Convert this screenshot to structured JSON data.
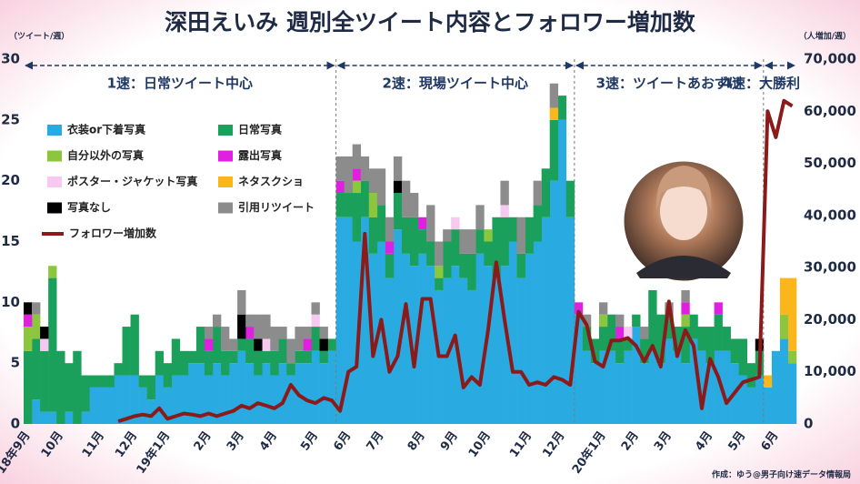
{
  "chart_data": {
    "type": "bar",
    "stacked": true,
    "title": "深田えいみ 週別全ツイート内容とフォロワー増加数",
    "ylabel": "（ツイート/週）",
    "y2label": "（人増加/週）",
    "source": "作成：ゆう@男子向け速データ情報局",
    "legend": "upper left",
    "grid": false,
    "ylim": [
      0,
      30
    ],
    "yticks": [
      0,
      5,
      10,
      15,
      20,
      25,
      30
    ],
    "y2lim": [
      0,
      70000
    ],
    "y2ticks": [
      0,
      {
        "value": 10000,
        "label": "10,000"
      },
      {
        "value": 20000,
        "label": "20,000"
      },
      {
        "value": 30000,
        "label": "30,000"
      },
      {
        "value": 40000,
        "label": "40,000"
      },
      {
        "value": 50000,
        "label": "50,000"
      },
      {
        "value": 60000,
        "label": "60,000"
      },
      {
        "value": 70000,
        "label": "70,000"
      }
    ],
    "phases": [
      {
        "label": "1速：日常ツイート中心",
        "start": 0,
        "end": 37
      },
      {
        "label": "2速：現場ツイート中心",
        "start": 38,
        "end": 66
      },
      {
        "label": "3速：ツイートあおずけ",
        "start": 67,
        "end": 89
      },
      {
        "label": "4速：大勝利",
        "start": 90,
        "end": 93
      }
    ],
    "categories": [
      "18年9月",
      null,
      null,
      null,
      "10月",
      null,
      null,
      null,
      null,
      "11月",
      null,
      null,
      null,
      "12月",
      null,
      null,
      null,
      "19年1月",
      null,
      null,
      null,
      null,
      "2月",
      null,
      null,
      null,
      "3月",
      null,
      null,
      null,
      "4月",
      null,
      null,
      null,
      null,
      "5月",
      null,
      null,
      null,
      "6月",
      null,
      null,
      null,
      "7月",
      null,
      null,
      null,
      null,
      "8月",
      null,
      null,
      null,
      "9月",
      null,
      null,
      null,
      "10月",
      null,
      null,
      null,
      null,
      "11月",
      null,
      null,
      null,
      "12月",
      null,
      null,
      null,
      null,
      "20年1月",
      null,
      null,
      null,
      "2月",
      null,
      null,
      null,
      "3月",
      null,
      null,
      null,
      null,
      "4月",
      null,
      null,
      null,
      "5月",
      null,
      null,
      null,
      "6月",
      null,
      null
    ],
    "series": [
      {
        "name": "衣装or下着写真",
        "color": "#29abe2",
        "values": [
          0,
          2,
          1,
          1,
          0,
          1,
          0,
          1,
          3,
          3,
          3,
          4,
          4,
          4,
          3,
          2,
          4,
          3,
          4,
          4,
          5,
          5,
          4,
          5,
          4,
          5,
          6,
          5,
          4,
          5,
          4,
          5,
          4,
          5,
          5,
          6,
          5,
          6,
          17,
          17,
          15,
          17,
          14,
          15,
          12,
          16,
          14,
          13,
          14,
          13,
          11,
          12,
          13,
          12,
          11,
          14,
          13,
          12,
          13,
          15,
          12,
          14,
          15,
          17,
          20,
          25,
          17,
          9,
          6,
          5,
          6,
          6,
          5,
          6,
          8,
          5,
          6,
          5,
          7,
          6,
          5,
          7,
          6,
          5,
          6,
          6,
          5,
          4,
          3,
          4,
          3,
          6,
          7,
          5
        ]
      },
      {
        "name": "日常写真",
        "color": "#1aa05a",
        "values": [
          6,
          5,
          5,
          11,
          6,
          4,
          6,
          3,
          1,
          1,
          1,
          1,
          4,
          5,
          1,
          2,
          2,
          2,
          3,
          2,
          1,
          3,
          2,
          3,
          2,
          1,
          1,
          2,
          2,
          1,
          2,
          2,
          1,
          1,
          1,
          2,
          1,
          1,
          2,
          2,
          4,
          3,
          3,
          3,
          2,
          3,
          3,
          4,
          2,
          2,
          1,
          3,
          3,
          2,
          3,
          2,
          2,
          5,
          4,
          2,
          2,
          3,
          3,
          4,
          5,
          2,
          3,
          0,
          2,
          2,
          2,
          3,
          2,
          1,
          1,
          2,
          5,
          4,
          2,
          2,
          3,
          2,
          2,
          3,
          3,
          2,
          2,
          3,
          2,
          2,
          0,
          0,
          0,
          0
        ]
      },
      {
        "name": "自分以外の写真",
        "color": "#8cc63f",
        "values": [
          2,
          2,
          0,
          1,
          0,
          0,
          0,
          0,
          0,
          0,
          0,
          0,
          0,
          0,
          0,
          0,
          0,
          0,
          0,
          0,
          0,
          0,
          0,
          0,
          0,
          0,
          0,
          0,
          0,
          0,
          0,
          0,
          0,
          0,
          0,
          0,
          0,
          0,
          0,
          0,
          1,
          0,
          2,
          0,
          0,
          0,
          0,
          0,
          0,
          0,
          1,
          0,
          0,
          0,
          0,
          0,
          1,
          0,
          0,
          0,
          0,
          0,
          0,
          0,
          0,
          0,
          0,
          0,
          0,
          0,
          1,
          0,
          0,
          0,
          0,
          0,
          0,
          0,
          0,
          0,
          1,
          0,
          0,
          0,
          0,
          0,
          0,
          0,
          0,
          0,
          0,
          0,
          2,
          1
        ]
      },
      {
        "name": "露出写真",
        "color": "#e020e0",
        "values": [
          1,
          0,
          0,
          0,
          0,
          0,
          0,
          0,
          0,
          0,
          0,
          0,
          0,
          0,
          0,
          0,
          0,
          0,
          0,
          0,
          0,
          0,
          1,
          0,
          0,
          0,
          0,
          1,
          0,
          0,
          0,
          0,
          0,
          0,
          1,
          0,
          0,
          0,
          1,
          0,
          1,
          0,
          0,
          0,
          1,
          0,
          0,
          0,
          1,
          0,
          0,
          0,
          0,
          0,
          0,
          0,
          0,
          0,
          0,
          0,
          0,
          0,
          0,
          0,
          0,
          0,
          0,
          1,
          0,
          0,
          0,
          0,
          1,
          0,
          0,
          0,
          0,
          0,
          0,
          0,
          1,
          0,
          0,
          0,
          1,
          0,
          0,
          0,
          0,
          0,
          0,
          0,
          0,
          0
        ]
      },
      {
        "name": "ポスター・ジャケット写真",
        "color": "#f7c8f0",
        "values": [
          0,
          0,
          1,
          0,
          0,
          0,
          0,
          0,
          0,
          0,
          0,
          0,
          0,
          0,
          0,
          0,
          0,
          0,
          0,
          0,
          0,
          0,
          0,
          0,
          0,
          0,
          0,
          0,
          0,
          1,
          0,
          0,
          0,
          0,
          0,
          1,
          0,
          0,
          0,
          0,
          0,
          0,
          0,
          0,
          0,
          0,
          0,
          0,
          0,
          0,
          0,
          0,
          1,
          0,
          0,
          0,
          0,
          0,
          1,
          0,
          0,
          0,
          0,
          0,
          0,
          0,
          0,
          0,
          0,
          0,
          0,
          0,
          0,
          1,
          0,
          0,
          0,
          0,
          0,
          0,
          0,
          0,
          0,
          0,
          0,
          0,
          0,
          0,
          0,
          0,
          0,
          0,
          0,
          0
        ]
      },
      {
        "name": "ネタスクショ",
        "color": "#fbb61b",
        "values": [
          0,
          0,
          0,
          0,
          0,
          0,
          0,
          0,
          0,
          0,
          0,
          0,
          0,
          0,
          0,
          0,
          0,
          0,
          0,
          0,
          0,
          0,
          0,
          0,
          0,
          0,
          0,
          0,
          0,
          0,
          0,
          0,
          0,
          0,
          0,
          0,
          0,
          0,
          0,
          0,
          0,
          0,
          0,
          0,
          0,
          0,
          0,
          0,
          0,
          0,
          0,
          0,
          0,
          0,
          0,
          0,
          0,
          0,
          0,
          0,
          0,
          0,
          0,
          0,
          1,
          0,
          0,
          0,
          0,
          0,
          0,
          0,
          0,
          0,
          0,
          0,
          0,
          0,
          0,
          0,
          0,
          0,
          0,
          0,
          0,
          0,
          0,
          0,
          0,
          0,
          1,
          0,
          3,
          6
        ]
      },
      {
        "name": "写真なし",
        "color": "#000000",
        "values": [
          1,
          0,
          1,
          0,
          0,
          0,
          0,
          0,
          0,
          0,
          0,
          0,
          0,
          0,
          0,
          0,
          0,
          0,
          0,
          0,
          0,
          0,
          0,
          0,
          0,
          0,
          2,
          0,
          1,
          0,
          0,
          0,
          0,
          0,
          0,
          0,
          1,
          0,
          0,
          0,
          0,
          0,
          0,
          0,
          0,
          1,
          0,
          0,
          0,
          0,
          0,
          0,
          0,
          0,
          0,
          0,
          0,
          0,
          0,
          0,
          0,
          0,
          0,
          0,
          0,
          0,
          0,
          0,
          0,
          0,
          0,
          0,
          0,
          0,
          0,
          0,
          0,
          0,
          0,
          0,
          0,
          0,
          0,
          0,
          0,
          0,
          0,
          0,
          0,
          1,
          0,
          0,
          0,
          0
        ]
      },
      {
        "name": "引用リツイート",
        "color": "#8c8c8c",
        "values": [
          0,
          1,
          0,
          0,
          0,
          0,
          0,
          0,
          0,
          0,
          0,
          0,
          0,
          0,
          0,
          0,
          0,
          0,
          0,
          0,
          0,
          0,
          1,
          1,
          2,
          1,
          2,
          1,
          2,
          2,
          2,
          1,
          2,
          2,
          1,
          1,
          1,
          0,
          2,
          3,
          2,
          2,
          2,
          3,
          2,
          2,
          3,
          2,
          0,
          3,
          2,
          1,
          0,
          2,
          2,
          2,
          0,
          0,
          2,
          0,
          3,
          0,
          2,
          0,
          2,
          0,
          0,
          0,
          1,
          0,
          1,
          0,
          1,
          0,
          0,
          1,
          0,
          0,
          1,
          0,
          1,
          0,
          0,
          0,
          0,
          0,
          0,
          0,
          0,
          0,
          0,
          0,
          0,
          0
        ]
      },
      {
        "name": "フォロワー増加数",
        "type": "line",
        "axis": "y2",
        "color": "#8b1a1a",
        "values": [
          null,
          null,
          null,
          null,
          null,
          null,
          null,
          null,
          null,
          null,
          null,
          500,
          1000,
          1500,
          1800,
          1500,
          3000,
          1000,
          1500,
          2000,
          1800,
          1500,
          2000,
          1500,
          2000,
          2500,
          3500,
          3000,
          4000,
          3500,
          3000,
          4000,
          7500,
          5500,
          4500,
          4000,
          5000,
          4500,
          2500,
          10000,
          11000,
          36500,
          13000,
          20000,
          10000,
          13000,
          23000,
          11000,
          24000,
          24000,
          13000,
          13000,
          17000,
          7000,
          9000,
          7500,
          18000,
          31000,
          20000,
          10000,
          10000,
          7500,
          8000,
          7500,
          9000,
          8500,
          7500,
          21500,
          19000,
          12000,
          11000,
          16000,
          16000,
          16500,
          15000,
          12000,
          15000,
          11000,
          23500,
          13000,
          18000,
          15000,
          3000,
          12500,
          9000,
          4000,
          6000,
          8000,
          8500,
          9000,
          60000,
          55000,
          62000,
          61000
        ]
      }
    ]
  }
}
